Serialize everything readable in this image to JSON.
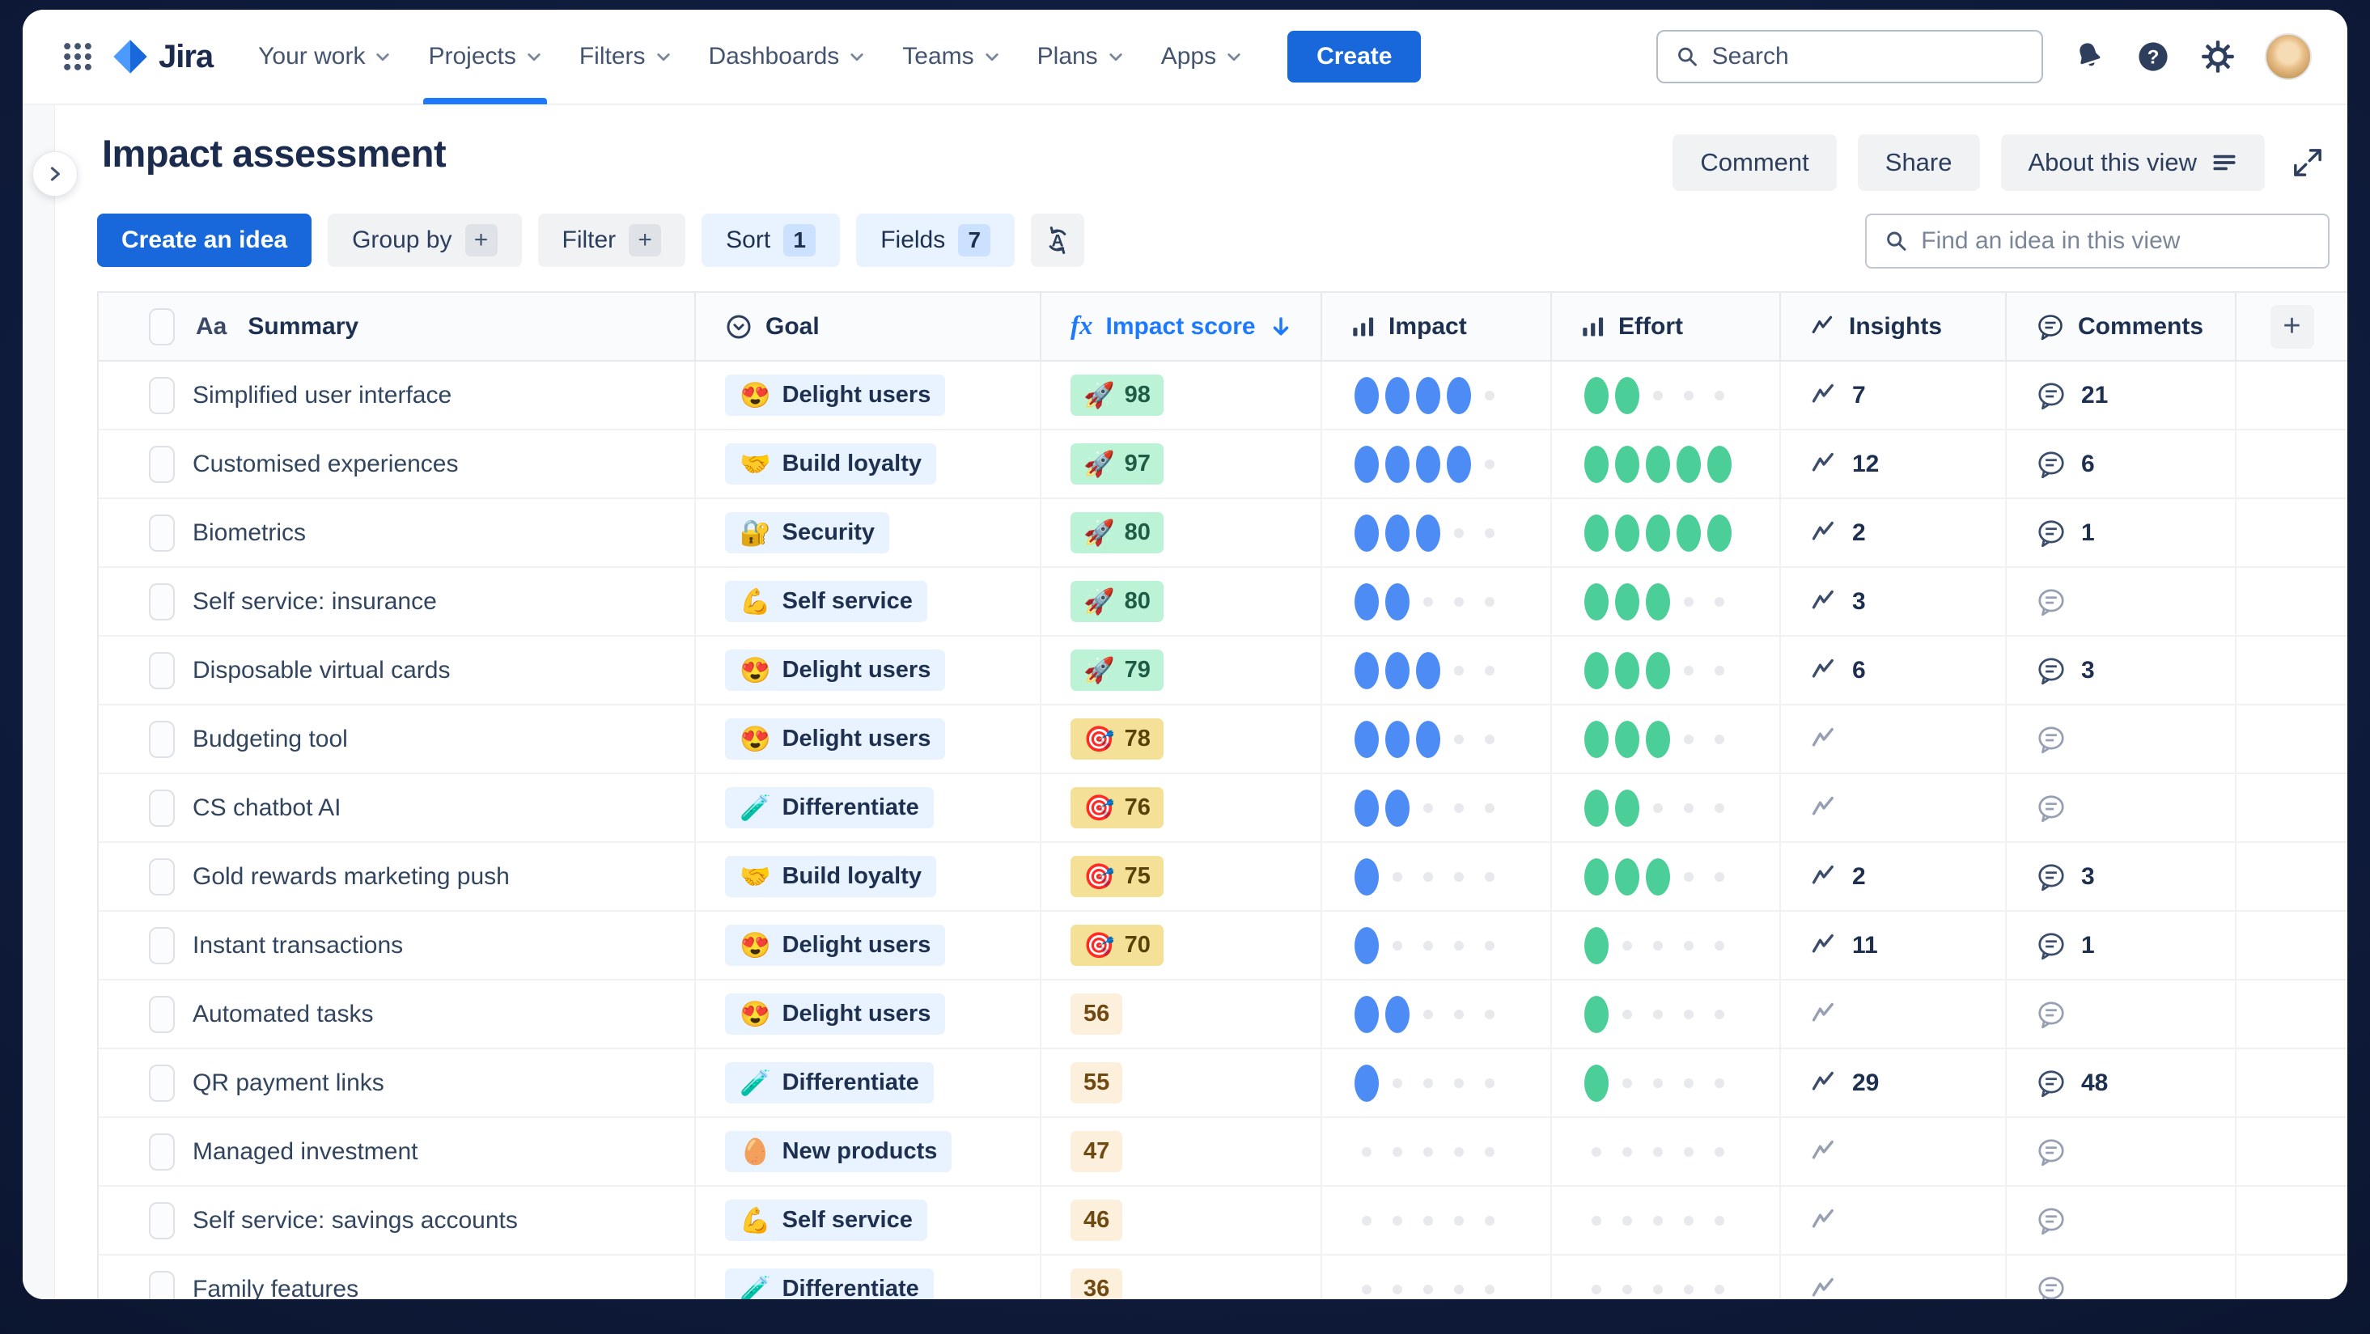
{
  "nav": {
    "brand": "Jira",
    "items": [
      {
        "label": "Your work",
        "active": false
      },
      {
        "label": "Projects",
        "active": true
      },
      {
        "label": "Filters",
        "active": false
      },
      {
        "label": "Dashboards",
        "active": false
      },
      {
        "label": "Teams",
        "active": false
      },
      {
        "label": "Plans",
        "active": false
      },
      {
        "label": "Apps",
        "active": false
      }
    ],
    "create_label": "Create",
    "search_placeholder": "Search"
  },
  "page": {
    "title": "Impact assessment",
    "actions": {
      "comment": "Comment",
      "share": "Share",
      "about": "About this view"
    }
  },
  "toolbar": {
    "create_idea_label": "Create an idea",
    "group_by_label": "Group by",
    "filter_label": "Filter",
    "sort_label": "Sort",
    "sort_count": "1",
    "fields_label": "Fields",
    "fields_count": "7",
    "add_glyph": "+",
    "find_placeholder": "Find an idea in this view"
  },
  "table": {
    "summary_icon_text": "Aa",
    "formula_icon_text": "fx",
    "add_column_glyph": "+",
    "rating_max": 5,
    "columns": [
      {
        "label": "Summary"
      },
      {
        "label": "Goal"
      },
      {
        "label": "Impact score",
        "sorted": "desc"
      },
      {
        "label": "Impact"
      },
      {
        "label": "Effort"
      },
      {
        "label": "Insights"
      },
      {
        "label": "Comments"
      }
    ],
    "rows": [
      {
        "summary": "Simplified user interface",
        "goal": "Delight users",
        "goal_emoji": "😍",
        "score": 98,
        "score_style": "green",
        "score_emoji": "🚀",
        "impact": 4,
        "effort": 2,
        "insights": 7,
        "comments": 21
      },
      {
        "summary": "Customised experiences",
        "goal": "Build loyalty",
        "goal_emoji": "🤝",
        "score": 97,
        "score_style": "green",
        "score_emoji": "🚀",
        "impact": 4,
        "effort": 5,
        "insights": 12,
        "comments": 6
      },
      {
        "summary": "Biometrics",
        "goal": "Security",
        "goal_emoji": "🔐",
        "score": 80,
        "score_style": "green",
        "score_emoji": "🚀",
        "impact": 3,
        "effort": 5,
        "insights": 2,
        "comments": 1
      },
      {
        "summary": "Self service: insurance",
        "goal": "Self service",
        "goal_emoji": "💪",
        "score": 80,
        "score_style": "green",
        "score_emoji": "🚀",
        "impact": 2,
        "effort": 3,
        "insights": 3,
        "comments": null
      },
      {
        "summary": "Disposable virtual cards",
        "goal": "Delight users",
        "goal_emoji": "😍",
        "score": 79,
        "score_style": "green",
        "score_emoji": "🚀",
        "impact": 3,
        "effort": 3,
        "insights": 6,
        "comments": 3
      },
      {
        "summary": "Budgeting tool",
        "goal": "Delight users",
        "goal_emoji": "😍",
        "score": 78,
        "score_style": "yellow",
        "score_emoji": "🎯",
        "impact": 3,
        "effort": 3,
        "insights": null,
        "comments": null
      },
      {
        "summary": "CS chatbot AI",
        "goal": "Differentiate",
        "goal_emoji": "🧪",
        "score": 76,
        "score_style": "yellow",
        "score_emoji": "🎯",
        "impact": 2,
        "effort": 2,
        "insights": null,
        "comments": null
      },
      {
        "summary": "Gold rewards marketing push",
        "goal": "Build loyalty",
        "goal_emoji": "🤝",
        "score": 75,
        "score_style": "yellow",
        "score_emoji": "🎯",
        "impact": 1,
        "effort": 3,
        "insights": 2,
        "comments": 3
      },
      {
        "summary": "Instant transactions",
        "goal": "Delight users",
        "goal_emoji": "😍",
        "score": 70,
        "score_style": "yellow",
        "score_emoji": "🎯",
        "impact": 1,
        "effort": 1,
        "insights": 11,
        "comments": 1
      },
      {
        "summary": "Automated tasks",
        "goal": "Delight users",
        "goal_emoji": "😍",
        "score": 56,
        "score_style": "plain",
        "score_emoji": null,
        "impact": 2,
        "effort": 1,
        "insights": null,
        "comments": null
      },
      {
        "summary": "QR payment links",
        "goal": "Differentiate",
        "goal_emoji": "🧪",
        "score": 55,
        "score_style": "plain",
        "score_emoji": null,
        "impact": 1,
        "effort": 1,
        "insights": 29,
        "comments": 48
      },
      {
        "summary": "Managed investment",
        "goal": "New products",
        "goal_emoji": "🥚",
        "score": 47,
        "score_style": "plain",
        "score_emoji": null,
        "impact": 0,
        "effort": 0,
        "insights": null,
        "comments": null
      },
      {
        "summary": "Self service: savings accounts",
        "goal": "Self service",
        "goal_emoji": "💪",
        "score": 46,
        "score_style": "plain",
        "score_emoji": null,
        "impact": 0,
        "effort": 0,
        "insights": null,
        "comments": null
      },
      {
        "summary": "Family features",
        "goal": "Differentiate",
        "goal_emoji": "🧪",
        "score": 36,
        "score_style": "plain",
        "score_emoji": null,
        "impact": 0,
        "effort": 0,
        "insights": null,
        "comments": null
      }
    ]
  },
  "colors": {
    "accent_blue": "#1868DB",
    "link_blue": "#1D7AFC",
    "impact_dot": "#4D8CF5",
    "effort_dot": "#4BCE97",
    "goal_pill_bg": "#E9F2FF",
    "score_green_bg": "#BCF2D5",
    "score_yellow_bg": "#F4E096",
    "score_plain_bg": "#FCEFDC"
  }
}
